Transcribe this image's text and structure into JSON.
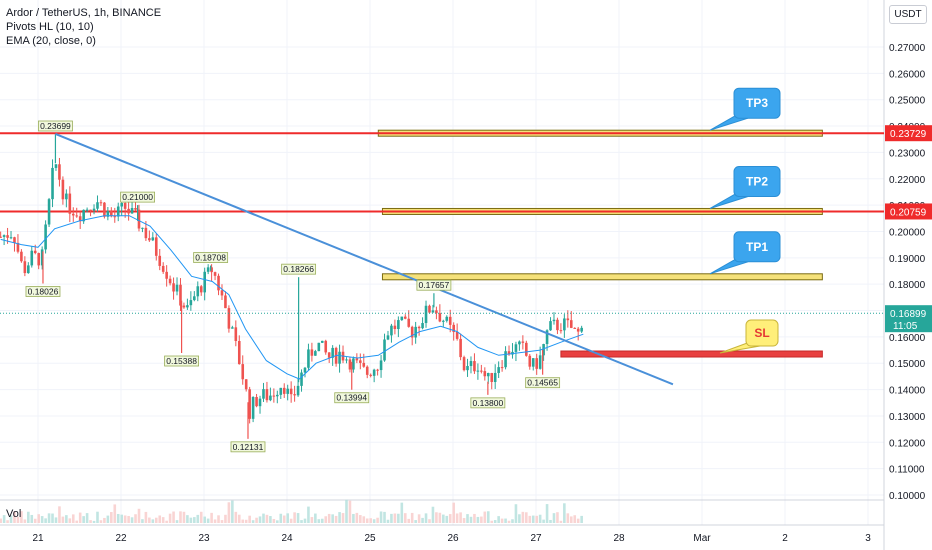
{
  "legend": {
    "symbol": "Ardor / TetherUS, 1h, BINANCE",
    "pivots": "Pivots HL (10, 10)",
    "ema": "EMA (20, close, 0)"
  },
  "volume_label": "Vol",
  "currency": "USDT",
  "current_price": {
    "value": "0.16899",
    "countdown": "11:05"
  },
  "colors": {
    "up": "#26a69a",
    "down": "#ef5350",
    "ema": "#2196f3",
    "trendline": "#4a90d9",
    "resistance": "#ef2b2b",
    "target_fill": "#f5e17a",
    "sl_fill": "#e84040",
    "callout": "#3ba5ee",
    "sl_callout": "#ffef7a"
  },
  "chart_data": {
    "type": "candlestick",
    "y_axis": {
      "ticks": [
        "0.27000",
        "0.26000",
        "0.25000",
        "0.24000",
        "0.23000",
        "0.22000",
        "0.21000",
        "0.20000",
        "0.19000",
        "0.18000",
        "0.17000",
        "0.16000",
        "0.15000",
        "0.14000",
        "0.13000",
        "0.12000",
        "0.11000",
        "0.10000"
      ],
      "range": [
        0.0985,
        0.2765
      ]
    },
    "x_axis": {
      "ticks": [
        {
          "label": "21",
          "day": 21
        },
        {
          "label": "22",
          "day": 22
        },
        {
          "label": "23",
          "day": 23
        },
        {
          "label": "24",
          "day": 24
        },
        {
          "label": "25",
          "day": 25
        },
        {
          "label": "26",
          "day": 26
        },
        {
          "label": "27",
          "day": 27
        },
        {
          "label": "28",
          "day": 28
        },
        {
          "label": "Mar",
          "day": 29
        },
        {
          "label": "2",
          "day": 30
        },
        {
          "label": "3",
          "day": 31
        }
      ]
    },
    "close_path": [
      [
        20.55,
        0.198
      ],
      [
        20.7,
        0.2
      ],
      [
        20.82,
        0.185
      ],
      [
        20.92,
        0.19
      ],
      [
        21.05,
        0.19
      ],
      [
        21.2,
        0.227
      ],
      [
        21.35,
        0.21
      ],
      [
        21.5,
        0.207
      ],
      [
        21.7,
        0.212
      ],
      [
        21.9,
        0.205
      ],
      [
        22.05,
        0.209
      ],
      [
        22.2,
        0.204
      ],
      [
        22.35,
        0.197
      ],
      [
        22.5,
        0.188
      ],
      [
        22.65,
        0.178
      ],
      [
        22.8,
        0.17
      ],
      [
        22.95,
        0.179
      ],
      [
        23.1,
        0.186
      ],
      [
        23.25,
        0.172
      ],
      [
        23.35,
        0.16
      ],
      [
        23.45,
        0.148
      ],
      [
        23.55,
        0.132
      ],
      [
        23.65,
        0.137
      ],
      [
        23.8,
        0.138
      ],
      [
        23.95,
        0.143
      ],
      [
        24.05,
        0.135
      ],
      [
        24.2,
        0.148
      ],
      [
        24.35,
        0.158
      ],
      [
        24.5,
        0.152
      ],
      [
        24.65,
        0.154
      ],
      [
        24.8,
        0.15
      ],
      [
        24.95,
        0.146
      ],
      [
        25.1,
        0.15
      ],
      [
        25.2,
        0.162
      ],
      [
        25.35,
        0.165
      ],
      [
        25.5,
        0.162
      ],
      [
        25.65,
        0.168
      ],
      [
        25.75,
        0.172
      ],
      [
        25.9,
        0.166
      ],
      [
        26.05,
        0.158
      ],
      [
        26.15,
        0.147
      ],
      [
        26.3,
        0.15
      ],
      [
        26.42,
        0.143
      ],
      [
        26.55,
        0.15
      ],
      [
        26.7,
        0.156
      ],
      [
        26.85,
        0.155
      ],
      [
        26.95,
        0.148
      ],
      [
        27.05,
        0.152
      ],
      [
        27.15,
        0.163
      ],
      [
        27.3,
        0.165
      ],
      [
        27.45,
        0.163
      ],
      [
        27.5,
        0.16
      ],
      [
        27.57,
        0.169
      ]
    ],
    "ema_path": [
      [
        20.55,
        0.197
      ],
      [
        20.8,
        0.195
      ],
      [
        21.0,
        0.194
      ],
      [
        21.2,
        0.201
      ],
      [
        21.5,
        0.204
      ],
      [
        21.8,
        0.206
      ],
      [
        22.1,
        0.206
      ],
      [
        22.35,
        0.202
      ],
      [
        22.6,
        0.193
      ],
      [
        22.85,
        0.183
      ],
      [
        23.1,
        0.181
      ],
      [
        23.3,
        0.176
      ],
      [
        23.5,
        0.163
      ],
      [
        23.75,
        0.151
      ],
      [
        24.0,
        0.146
      ],
      [
        24.15,
        0.144
      ],
      [
        24.35,
        0.15
      ],
      [
        24.6,
        0.153
      ],
      [
        24.85,
        0.152
      ],
      [
        25.1,
        0.153
      ],
      [
        25.35,
        0.158
      ],
      [
        25.6,
        0.162
      ],
      [
        25.85,
        0.164
      ],
      [
        26.05,
        0.162
      ],
      [
        26.3,
        0.156
      ],
      [
        26.55,
        0.153
      ],
      [
        26.8,
        0.154
      ],
      [
        27.05,
        0.155
      ],
      [
        27.3,
        0.158
      ],
      [
        27.57,
        0.161
      ]
    ],
    "pivots": [
      {
        "label": "0.23699",
        "day": 21.21,
        "value": 0.23699,
        "kind": "high"
      },
      {
        "label": "0.18026",
        "day": 21.06,
        "value": 0.18026,
        "kind": "low"
      },
      {
        "label": "0.21000",
        "day": 22.2,
        "value": 0.21,
        "kind": "high"
      },
      {
        "label": "0.18708",
        "day": 23.08,
        "value": 0.18708,
        "kind": "high"
      },
      {
        "label": "0.15388",
        "day": 22.73,
        "value": 0.15388,
        "kind": "low"
      },
      {
        "label": "0.18266",
        "day": 24.14,
        "value": 0.18266,
        "kind": "high"
      },
      {
        "label": "0.12131",
        "day": 23.53,
        "value": 0.12131,
        "kind": "low"
      },
      {
        "label": "0.13994",
        "day": 24.78,
        "value": 0.13994,
        "kind": "low"
      },
      {
        "label": "0.17657",
        "day": 25.77,
        "value": 0.17657,
        "kind": "high"
      },
      {
        "label": "0.13800",
        "day": 26.42,
        "value": 0.138,
        "kind": "low"
      },
      {
        "label": "0.14565",
        "day": 27.08,
        "value": 0.14565,
        "kind": "low"
      }
    ],
    "horizontal_lines": [
      {
        "label": "0.23729",
        "value": 0.23729
      },
      {
        "label": "0.20759",
        "value": 0.20759
      }
    ],
    "trendline": {
      "from": [
        21.21,
        0.237
      ],
      "to": [
        28.65,
        0.142
      ]
    },
    "zones": [
      {
        "name": "TP3",
        "value": 0.23729,
        "from_day": 25.1,
        "to_day": 30.45,
        "callout": "TP3",
        "kind": "target"
      },
      {
        "name": "TP2",
        "value": 0.20759,
        "from_day": 25.15,
        "to_day": 30.45,
        "callout": "TP2",
        "kind": "target"
      },
      {
        "name": "TP1",
        "value": 0.1828,
        "from_day": 25.15,
        "to_day": 30.45,
        "callout": "TP1",
        "kind": "target"
      },
      {
        "name": "SL",
        "value": 0.1535,
        "from_day": 27.3,
        "to_day": 30.45,
        "callout": "SL",
        "kind": "stop"
      }
    ]
  }
}
